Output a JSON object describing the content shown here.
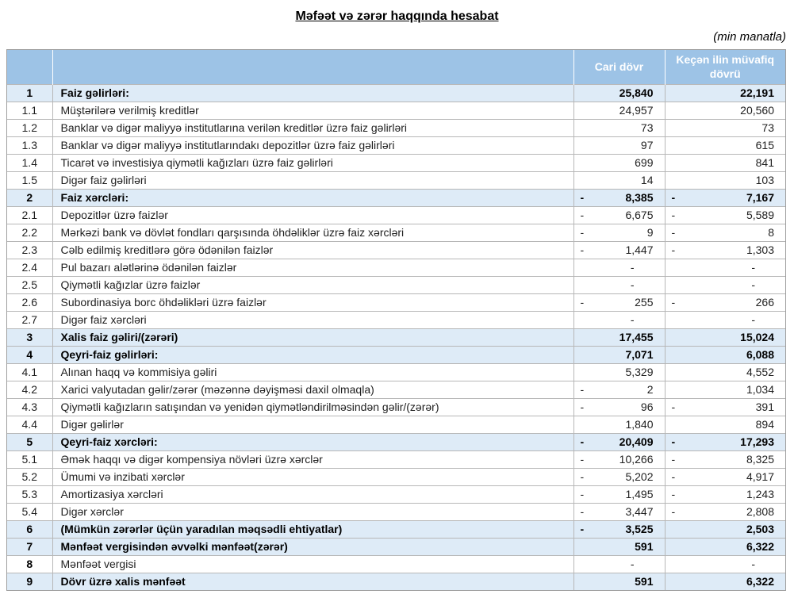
{
  "title": "Məfəət və zərər haqqında hesabat",
  "unit_note": "(min manatla)",
  "colors": {
    "header_bg": "#9DC3E6",
    "header_text": "#FFFFFF",
    "row_highlight_bg": "#DEEBF7",
    "border": "#B7B7B7",
    "text": "#1F1F1F"
  },
  "table": {
    "header": {
      "number_col": "",
      "label_col": "",
      "current": "Cari dövr",
      "previous": "Keçən ilin müvafiq dövrü"
    },
    "rows": [
      {
        "no": "1",
        "label": "Faiz gəlirləri:",
        "highlight": true,
        "label_bold": true,
        "no_bold": true,
        "cur": {
          "m": "",
          "v": "25,840"
        },
        "prev": {
          "m": "",
          "v": "22,191"
        }
      },
      {
        "no": "1.1",
        "label": "Müştərilərə verilmiş kreditlər",
        "highlight": false,
        "label_bold": false,
        "no_bold": false,
        "cur": {
          "m": "",
          "v": "24,957"
        },
        "prev": {
          "m": "",
          "v": "20,560"
        }
      },
      {
        "no": "1.2",
        "label": "Banklar və digər maliyyə institutlarına verilən kreditlər üzrə faiz gəlirləri",
        "highlight": false,
        "label_bold": false,
        "no_bold": false,
        "cur": {
          "m": "",
          "v": "73"
        },
        "prev": {
          "m": "",
          "v": "73"
        }
      },
      {
        "no": "1.3",
        "label": "Banklar və digər maliyyə institutlarındakı depozitlər üzrə faiz gəlirləri",
        "highlight": false,
        "label_bold": false,
        "no_bold": false,
        "cur": {
          "m": "",
          "v": "97"
        },
        "prev": {
          "m": "",
          "v": "615"
        }
      },
      {
        "no": "1.4",
        "label": "Ticarət və investisiya qiymətli kağızları üzrə faiz gəlirləri",
        "highlight": false,
        "label_bold": false,
        "no_bold": false,
        "cur": {
          "m": "",
          "v": "699"
        },
        "prev": {
          "m": "",
          "v": "841"
        }
      },
      {
        "no": "1.5",
        "label": "Digər faiz gəlirləri",
        "highlight": false,
        "label_bold": false,
        "no_bold": false,
        "cur": {
          "m": "",
          "v": "14"
        },
        "prev": {
          "m": "",
          "v": "103"
        }
      },
      {
        "no": "2",
        "label": "Faiz xərcləri:",
        "highlight": true,
        "label_bold": true,
        "no_bold": true,
        "cur": {
          "m": "-",
          "v": "8,385"
        },
        "prev": {
          "m": "-",
          "v": "7,167"
        }
      },
      {
        "no": "2.1",
        "label": "Depozitlər üzrə faizlər",
        "highlight": false,
        "label_bold": false,
        "no_bold": false,
        "cur": {
          "m": "-",
          "v": "6,675"
        },
        "prev": {
          "m": "-",
          "v": "5,589"
        }
      },
      {
        "no": "2.2",
        "label": "Mərkəzi bank və dövlət fondları qarşısında öhdəliklər üzrə faiz xərcləri",
        "highlight": false,
        "label_bold": false,
        "no_bold": false,
        "cur": {
          "m": "-",
          "v": "9"
        },
        "prev": {
          "m": "-",
          "v": "8"
        }
      },
      {
        "no": "2.3",
        "label": "Cəlb edilmiş kreditlərə görə ödənilən faizlər",
        "highlight": false,
        "label_bold": false,
        "no_bold": false,
        "cur": {
          "m": "-",
          "v": "1,447"
        },
        "prev": {
          "m": "-",
          "v": "1,303"
        }
      },
      {
        "no": "2.4",
        "label": "Pul bazarı alətlərinə ödənilən faizlər",
        "highlight": false,
        "label_bold": false,
        "no_bold": false,
        "cur": {
          "m": "",
          "v": "-"
        },
        "prev": {
          "m": "",
          "v": "-"
        }
      },
      {
        "no": "2.5",
        "label": "Qiymətli kağızlar üzrə faizlər",
        "highlight": false,
        "label_bold": false,
        "no_bold": false,
        "cur": {
          "m": "",
          "v": "-"
        },
        "prev": {
          "m": "",
          "v": "-"
        }
      },
      {
        "no": "2.6",
        "label": "Subordinasiya borc öhdəlikləri üzrə faizlər",
        "highlight": false,
        "label_bold": false,
        "no_bold": false,
        "cur": {
          "m": "-",
          "v": "255"
        },
        "prev": {
          "m": "-",
          "v": "266"
        }
      },
      {
        "no": "2.7",
        "label": "Digər faiz xərcləri",
        "highlight": false,
        "label_bold": false,
        "no_bold": false,
        "cur": {
          "m": "",
          "v": "-"
        },
        "prev": {
          "m": "",
          "v": "-"
        }
      },
      {
        "no": "3",
        "label": "Xalis faiz gəliri/(zərəri)",
        "highlight": true,
        "label_bold": true,
        "no_bold": true,
        "cur": {
          "m": "",
          "v": "17,455"
        },
        "prev": {
          "m": "",
          "v": "15,024"
        }
      },
      {
        "no": "4",
        "label": "Qeyri-faiz gəlirləri:",
        "highlight": true,
        "label_bold": true,
        "no_bold": true,
        "cur": {
          "m": "",
          "v": "7,071"
        },
        "prev": {
          "m": "",
          "v": "6,088"
        }
      },
      {
        "no": "4.1",
        "label": "Alınan haqq və kommisiya gəliri",
        "highlight": false,
        "label_bold": false,
        "no_bold": false,
        "cur": {
          "m": "",
          "v": "5,329"
        },
        "prev": {
          "m": "",
          "v": "4,552"
        }
      },
      {
        "no": "4.2",
        "label": "Xarici valyutadan gəlir/zərər (məzənnə dəyişməsi daxil olmaqla)",
        "highlight": false,
        "label_bold": false,
        "no_bold": false,
        "cur": {
          "m": "-",
          "v": "2"
        },
        "prev": {
          "m": "",
          "v": "1,034"
        }
      },
      {
        "no": "4.3",
        "label": "Qiymətli kağızların satışından və yenidən qiymətləndirilməsindən gəlir/(zərər)",
        "highlight": false,
        "label_bold": false,
        "no_bold": false,
        "cur": {
          "m": "-",
          "v": "96"
        },
        "prev": {
          "m": "-",
          "v": "391"
        }
      },
      {
        "no": "4.4",
        "label": "Digər gəlirlər",
        "highlight": false,
        "label_bold": false,
        "no_bold": false,
        "cur": {
          "m": "",
          "v": "1,840"
        },
        "prev": {
          "m": "",
          "v": "894"
        }
      },
      {
        "no": "5",
        "label": "Qeyri-faiz xərcləri:",
        "highlight": true,
        "label_bold": true,
        "no_bold": true,
        "cur": {
          "m": "-",
          "v": "20,409"
        },
        "prev": {
          "m": "-",
          "v": "17,293"
        }
      },
      {
        "no": "5.1",
        "label": "Əmək haqqı və digər kompensiya növləri üzrə xərclər",
        "highlight": false,
        "label_bold": false,
        "no_bold": false,
        "cur": {
          "m": "-",
          "v": "10,266"
        },
        "prev": {
          "m": "-",
          "v": "8,325"
        }
      },
      {
        "no": "5.2",
        "label": "Ümumi və inzibati xərclər",
        "highlight": false,
        "label_bold": false,
        "no_bold": false,
        "cur": {
          "m": "-",
          "v": "5,202"
        },
        "prev": {
          "m": "-",
          "v": "4,917"
        }
      },
      {
        "no": "5.3",
        "label": "Amortizasiya xərcləri",
        "highlight": false,
        "label_bold": false,
        "no_bold": false,
        "cur": {
          "m": "-",
          "v": "1,495"
        },
        "prev": {
          "m": "-",
          "v": "1,243"
        }
      },
      {
        "no": "5.4",
        "label": "Digər xərclər",
        "highlight": false,
        "label_bold": false,
        "no_bold": false,
        "cur": {
          "m": "-",
          "v": "3,447"
        },
        "prev": {
          "m": "-",
          "v": "2,808"
        }
      },
      {
        "no": "6",
        "label": "(Mümkün zərərlər üçün yaradılan məqsədli ehtiyatlar)",
        "highlight": true,
        "label_bold": true,
        "no_bold": true,
        "cur": {
          "m": "-",
          "v": "3,525"
        },
        "prev": {
          "m": "",
          "v": "2,503"
        }
      },
      {
        "no": "7",
        "label": "Mənfəət vergisindən əvvəlki mənfəət(zərər)",
        "highlight": true,
        "label_bold": true,
        "no_bold": true,
        "cur": {
          "m": "",
          "v": "591"
        },
        "prev": {
          "m": "",
          "v": "6,322"
        }
      },
      {
        "no": "8",
        "label": "Mənfəət vergisi",
        "highlight": false,
        "label_bold": false,
        "no_bold": true,
        "cur": {
          "m": "",
          "v": "-"
        },
        "prev": {
          "m": "",
          "v": "-"
        }
      },
      {
        "no": "9",
        "label": "Dövr üzrə xalis mənfəət",
        "highlight": true,
        "label_bold": true,
        "no_bold": true,
        "cur": {
          "m": "",
          "v": "591"
        },
        "prev": {
          "m": "",
          "v": "6,322"
        }
      }
    ]
  }
}
